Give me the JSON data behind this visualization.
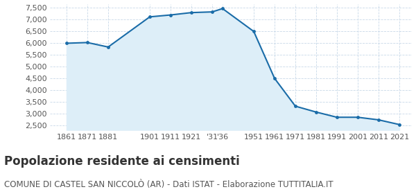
{
  "years": [
    1861,
    1871,
    1881,
    1901,
    1911,
    1921,
    1931,
    1936,
    1951,
    1961,
    1971,
    1981,
    1991,
    2001,
    2011,
    2021
  ],
  "population": [
    5980,
    6010,
    5820,
    7100,
    7180,
    7280,
    7310,
    7450,
    6480,
    4490,
    3310,
    3060,
    2840,
    2840,
    2730,
    2530
  ],
  "x_positions": [
    1861,
    1871,
    1881,
    1901,
    1911,
    1921,
    1931,
    1936,
    1951,
    1961,
    1971,
    1981,
    1991,
    2001,
    2011,
    2021
  ],
  "x_labels": [
    "1861",
    "1871",
    "1881",
    "1901",
    "1911",
    "1921",
    "'31",
    "'36",
    "1951",
    "1961",
    "1971",
    "1981",
    "1991",
    "2001",
    "2011",
    "2021"
  ],
  "title": "Popolazione residente ai censimenti",
  "subtitle": "COMUNE DI CASTEL SAN NICCOLÒ (AR) - Dati ISTAT - Elaborazione TUTTITALIA.IT",
  "line_color": "#1a6ca8",
  "fill_color": "#ddeef8",
  "marker_color": "#1a6ca8",
  "background_color": "#ffffff",
  "grid_color": "#c8d8e8",
  "ylim": [
    2300,
    7650
  ],
  "yticks": [
    2500,
    3000,
    3500,
    4000,
    4500,
    5000,
    5500,
    6000,
    6500,
    7000,
    7500
  ],
  "title_fontsize": 12,
  "subtitle_fontsize": 8.5,
  "tick_fontsize": 8,
  "xlim_left": 1853,
  "xlim_right": 2027
}
